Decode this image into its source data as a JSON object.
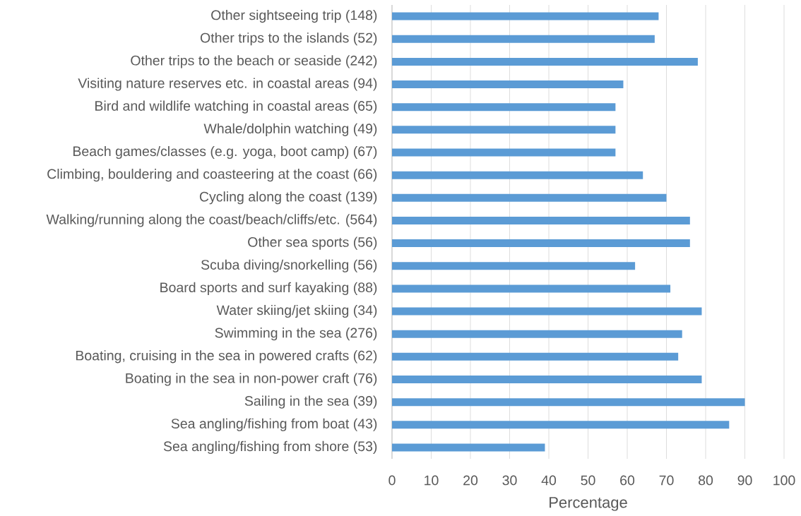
{
  "chart_data": {
    "type": "bar",
    "orientation": "horizontal",
    "categories": [
      "Other sightseeing trip (148)",
      "Other trips to the islands (52)",
      "Other trips to the beach or seaside (242)",
      "Visiting nature reserves etc. in coastal areas (94)",
      "Bird and wildlife watching in coastal areas (65)",
      "Whale/dolphin watching (49)",
      "Beach games/classes (e.g. yoga, boot camp) (67)",
      "Climbing, bouldering and coasteering at the coast (66)",
      "Cycling along the coast (139)",
      "Walking/running along the coast/beach/cliffs/etc. (564)",
      "Other sea sports (56)",
      "Scuba diving/snorkelling (56)",
      "Board sports and surf kayaking (88)",
      "Water skiing/jet skiing (34)",
      "Swimming in the sea (276)",
      "Boating, cruising in the sea in powered crafts (62)",
      "Boating in the sea in non-power craft (76)",
      "Sailing in the sea (39)",
      "Sea angling/fishing from boat (43)",
      "Sea angling/fishing from shore (53)"
    ],
    "values": [
      68,
      67,
      78,
      59,
      57,
      57,
      57,
      64,
      70,
      76,
      76,
      62,
      71,
      79,
      74,
      73,
      79,
      90,
      86,
      39
    ],
    "color": "#5b9bd5",
    "xlabel": "Percentage",
    "xlim": [
      0,
      100
    ],
    "xticks": [
      0,
      10,
      20,
      30,
      40,
      50,
      60,
      70,
      80,
      90,
      100
    ],
    "grid": "x"
  }
}
